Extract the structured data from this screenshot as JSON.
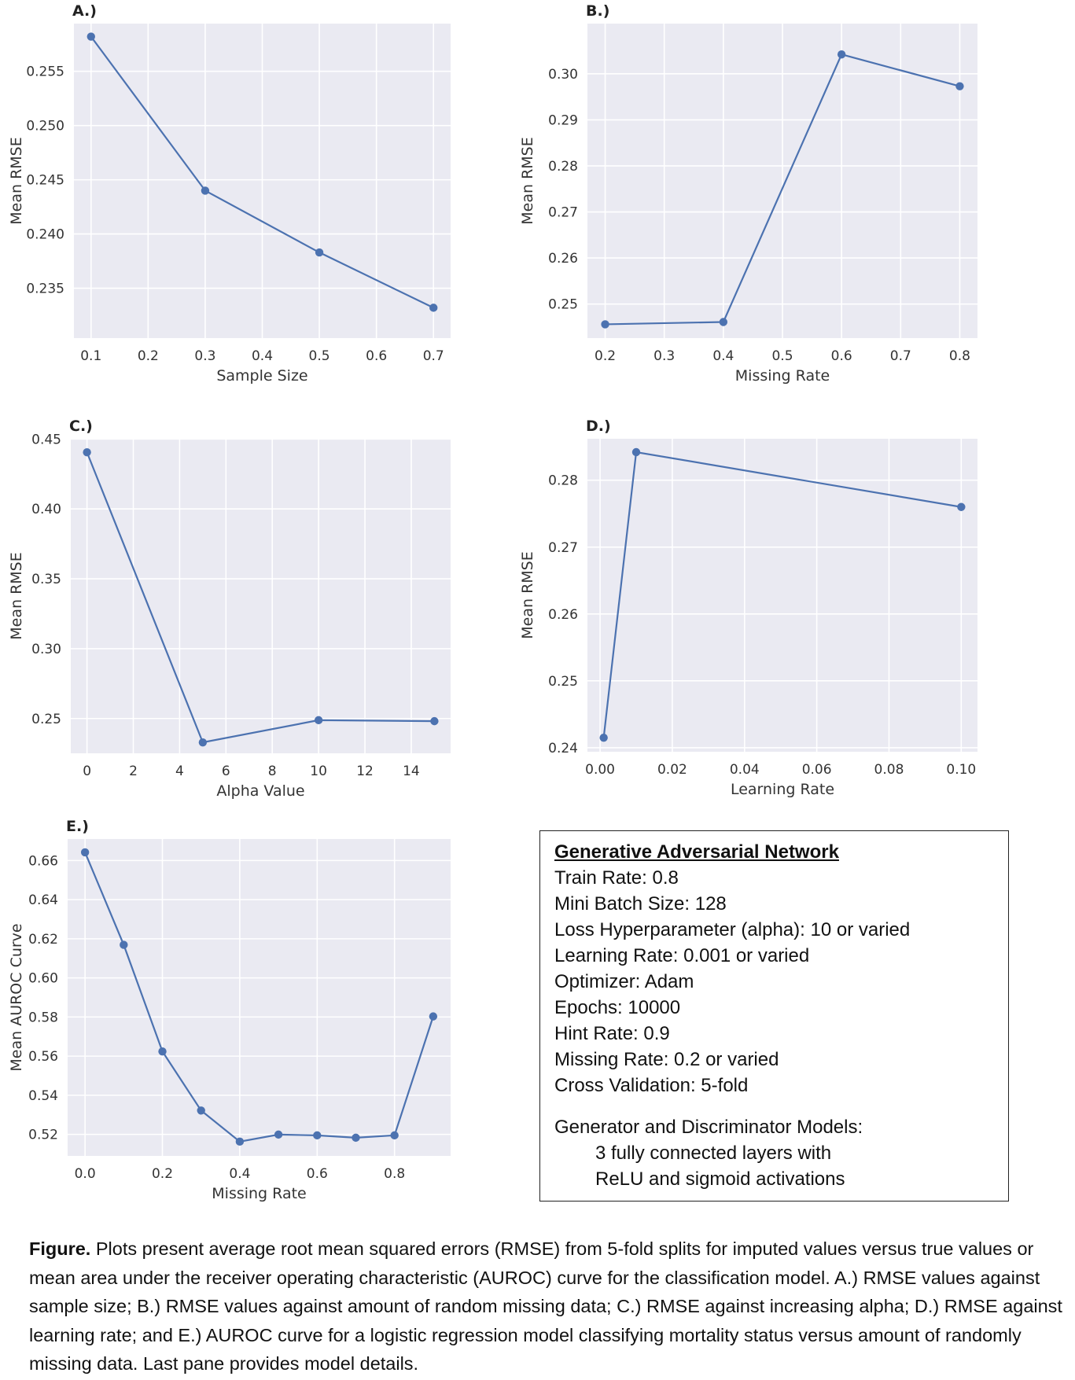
{
  "chart_data": [
    {
      "type": "line",
      "panel": "A.)",
      "xlabel": "Sample Size",
      "ylabel": "Mean RMSE",
      "x": [
        0.1,
        0.3,
        0.5,
        0.7
      ],
      "y": [
        0.2582,
        0.244,
        0.2383,
        0.2332
      ],
      "xlim": [
        0.07,
        0.73
      ],
      "ylim": [
        0.2304,
        0.2594
      ],
      "xticks": [
        0.1,
        0.2,
        0.3,
        0.4,
        0.5,
        0.6,
        0.7
      ],
      "xtick_labels": [
        "0.1",
        "0.2",
        "0.3",
        "0.4",
        "0.5",
        "0.6",
        "0.7"
      ],
      "yticks": [
        0.235,
        0.24,
        0.245,
        0.25,
        0.255
      ],
      "ytick_labels": [
        "0.235",
        "0.240",
        "0.245",
        "0.250",
        "0.255"
      ],
      "grid": true
    },
    {
      "type": "line",
      "panel": "B.)",
      "xlabel": "Missing Rate",
      "ylabel": "Mean RMSE",
      "x": [
        0.2,
        0.4,
        0.6,
        0.8
      ],
      "y": [
        0.2456,
        0.2461,
        0.3042,
        0.2973
      ],
      "xlim": [
        0.17,
        0.83
      ],
      "ylim": [
        0.2426,
        0.3109
      ],
      "xticks": [
        0.2,
        0.3,
        0.4,
        0.5,
        0.6,
        0.7,
        0.8
      ],
      "xtick_labels": [
        "0.2",
        "0.3",
        "0.4",
        "0.5",
        "0.6",
        "0.7",
        "0.8"
      ],
      "yticks": [
        0.25,
        0.26,
        0.27,
        0.28,
        0.29,
        0.3
      ],
      "ytick_labels": [
        "0.25",
        "0.26",
        "0.27",
        "0.28",
        "0.29",
        "0.30"
      ],
      "grid": true
    },
    {
      "type": "line",
      "panel": "C.)",
      "xlabel": "Alpha Value",
      "ylabel": "Mean RMSE",
      "x": [
        0,
        5,
        10,
        15
      ],
      "y": [
        0.4405,
        0.2329,
        0.2488,
        0.2481
      ],
      "xlim": [
        -0.7,
        15.7
      ],
      "ylim": [
        0.2251,
        0.4502
      ],
      "xticks": [
        0,
        2,
        4,
        6,
        8,
        10,
        12,
        14
      ],
      "xtick_labels": [
        "0",
        "2",
        "4",
        "6",
        "8",
        "10",
        "12",
        "14"
      ],
      "yticks": [
        0.25,
        0.3,
        0.35,
        0.4,
        0.45
      ],
      "ytick_labels": [
        "0.25",
        "0.30",
        "0.35",
        "0.40",
        "0.45"
      ],
      "grid": true
    },
    {
      "type": "line",
      "panel": "D.)",
      "xlabel": "Learning Rate",
      "ylabel": "Mean RMSE",
      "x": [
        0.001,
        0.01,
        0.1
      ],
      "y": [
        0.2415,
        0.2842,
        0.276
      ],
      "xlim": [
        -0.0035,
        0.1045
      ],
      "ylim": [
        0.2394,
        0.2862
      ],
      "xticks": [
        0.0,
        0.02,
        0.04,
        0.06,
        0.08,
        0.1
      ],
      "xtick_labels": [
        "0.00",
        "0.02",
        "0.04",
        "0.06",
        "0.08",
        "0.10"
      ],
      "yticks": [
        0.24,
        0.25,
        0.26,
        0.27,
        0.28
      ],
      "ytick_labels": [
        "0.24",
        "0.25",
        "0.26",
        "0.27",
        "0.28"
      ],
      "grid": true
    },
    {
      "type": "line",
      "panel": "E.)",
      "xlabel": "Missing Rate",
      "ylabel": "Mean AUROC Curve",
      "x": [
        0.0,
        0.1,
        0.2,
        0.3,
        0.4,
        0.5,
        0.6,
        0.7,
        0.8,
        0.9
      ],
      "y": [
        0.6642,
        0.6169,
        0.5624,
        0.5322,
        0.5163,
        0.5199,
        0.5195,
        0.5183,
        0.5195,
        0.5803
      ],
      "xlim": [
        -0.045,
        0.945
      ],
      "ylim": [
        0.509,
        0.671
      ],
      "xticks": [
        0.0,
        0.2,
        0.4,
        0.6,
        0.8
      ],
      "xtick_labels": [
        "0.0",
        "0.2",
        "0.4",
        "0.6",
        "0.8"
      ],
      "yticks": [
        0.52,
        0.54,
        0.56,
        0.58,
        0.6,
        0.62,
        0.64,
        0.66
      ],
      "ytick_labels": [
        "0.52",
        "0.54",
        "0.56",
        "0.58",
        "0.60",
        "0.62",
        "0.64",
        "0.66"
      ],
      "grid": true
    }
  ],
  "details": {
    "title": "Generative Adversarial Network",
    "lines": [
      "Train Rate: 0.8",
      "Mini Batch Size: 128",
      "Loss Hyperparameter (alpha): 10 or varied",
      "Learning Rate: 0.001 or varied",
      "Optimizer: Adam",
      "Epochs: 10000",
      "Hint Rate: 0.9",
      "Missing Rate: 0.2 or varied",
      "Cross Validation: 5-fold"
    ],
    "models_heading": "Generator and Discriminator Models:",
    "models_lines": [
      "3 fully connected layers with",
      "ReLU and sigmoid activations"
    ]
  },
  "caption": {
    "label": "Figure.",
    "text": " Plots present average root mean squared errors (RMSE) from 5-fold splits for imputed values versus true values or mean area under the receiver operating characteristic (AUROC) curve for the classification model. A.) RMSE values against sample size; B.) RMSE values against amount of random missing data; C.) RMSE against increasing alpha; D.) RMSE against learning rate; and E.) AUROC curve for a logistic regression model classifying mortality status versus amount of randomly missing data. Last pane provides model details."
  },
  "colors": {
    "plot_background": "#eaeaf2",
    "gridline": "#ffffff",
    "series": "#4c72b0"
  }
}
